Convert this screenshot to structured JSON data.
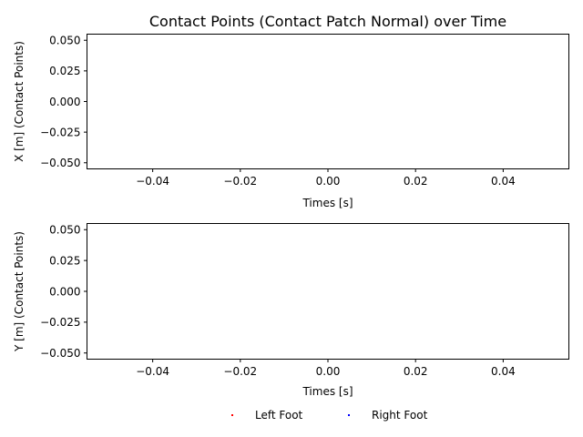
{
  "chart_data": [
    {
      "type": "scatter",
      "title": "Contact Points (Contact Patch Normal) over Time",
      "xlabel": "Times [s]",
      "ylabel": "X [m] (Contact Points)",
      "xlim": [
        -0.055,
        0.055
      ],
      "ylim": [
        -0.055,
        0.055
      ],
      "xticks": [
        -0.04,
        -0.02,
        0.0,
        0.02,
        0.04
      ],
      "xtick_labels": [
        "−0.04",
        "−0.02",
        "0.00",
        "0.02",
        "0.04"
      ],
      "yticks": [
        0.05,
        0.025,
        0.0,
        -0.025,
        -0.05
      ],
      "ytick_labels": [
        "0.050",
        "0.025",
        "0.000",
        "−0.025",
        "−0.050"
      ],
      "grid": false,
      "series": [
        {
          "name": "Left Foot",
          "color": "#ff0000",
          "points": []
        },
        {
          "name": "Right Foot",
          "color": "#0000ff",
          "points": []
        }
      ]
    },
    {
      "type": "scatter",
      "title": "",
      "xlabel": "Times [s]",
      "ylabel": "Y [m] (Contact Points)",
      "xlim": [
        -0.055,
        0.055
      ],
      "ylim": [
        -0.055,
        0.055
      ],
      "xticks": [
        -0.04,
        -0.02,
        0.0,
        0.02,
        0.04
      ],
      "xtick_labels": [
        "−0.04",
        "−0.02",
        "0.00",
        "0.02",
        "0.04"
      ],
      "yticks": [
        0.05,
        0.025,
        0.0,
        -0.025,
        -0.05
      ],
      "ytick_labels": [
        "0.050",
        "0.025",
        "0.000",
        "−0.025",
        "−0.050"
      ],
      "grid": false,
      "series": [
        {
          "name": "Left Foot",
          "color": "#ff0000",
          "points": []
        },
        {
          "name": "Right Foot",
          "color": "#0000ff",
          "points": []
        }
      ]
    }
  ],
  "legend": {
    "placement": "bottom-center",
    "entries": [
      {
        "label": "Left Foot",
        "color": "#ff0000"
      },
      {
        "label": "Right Foot",
        "color": "#0000ff"
      }
    ]
  }
}
